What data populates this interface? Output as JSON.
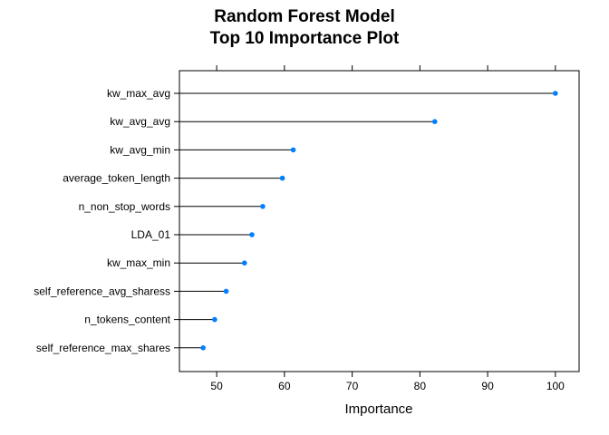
{
  "chart_data": {
    "type": "dot",
    "title_line1": "Random Forest Model",
    "title_line2": "Top 10 Importance Plot",
    "xlabel": "Importance",
    "ylabel": "",
    "xlim": [
      44.5,
      103.5
    ],
    "xticks": [
      50,
      60,
      70,
      80,
      90,
      100
    ],
    "xtick_labels": [
      "50",
      "60",
      "70",
      "80",
      "90",
      "100"
    ],
    "categories": [
      "kw_max_avg",
      "kw_avg_avg",
      "kw_avg_min",
      "average_token_length",
      "n_non_stop_words",
      "LDA_01",
      "kw_max_min",
      "self_reference_avg_sharess",
      "n_tokens_content",
      "self_reference_max_shares"
    ],
    "values": [
      100,
      82.2,
      61.3,
      59.7,
      56.8,
      55.2,
      54.1,
      51.4,
      49.7,
      48.0
    ],
    "point_color": "#0080ff",
    "grid": false,
    "legend": "none"
  }
}
